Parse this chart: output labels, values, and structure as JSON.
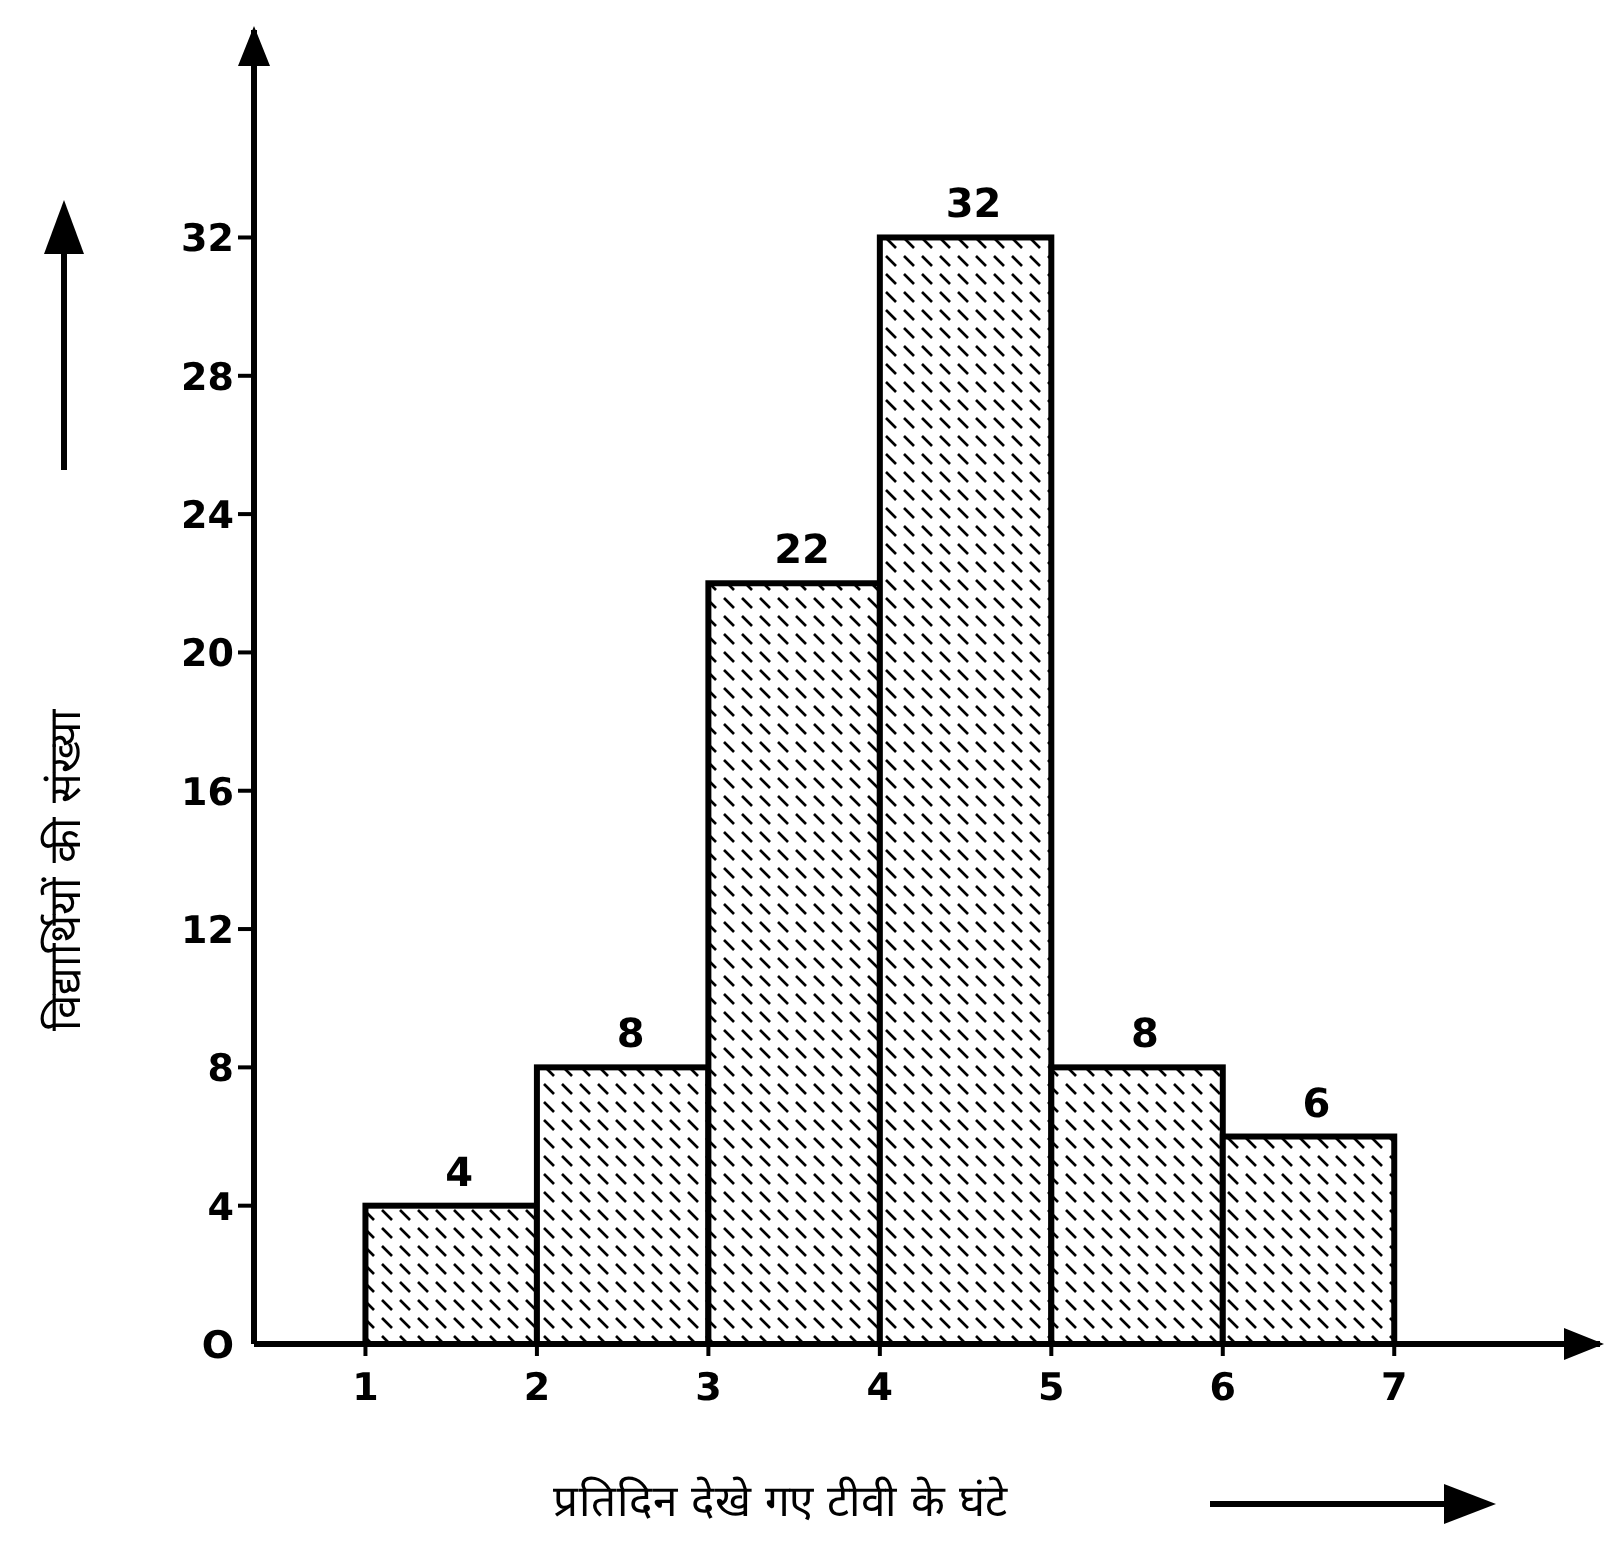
{
  "chart_data": {
    "type": "histogram",
    "xlabel": "प्रतिदिन देखे गए टीवी के घंटे",
    "ylabel": "विद्यार्थियों की संख्या",
    "bins": [
      1,
      2,
      3,
      4,
      5,
      6,
      7
    ],
    "values": [
      4,
      8,
      22,
      32,
      8,
      6
    ],
    "color": "#000000",
    "data_labels": true,
    "grid": false,
    "xlim": [
      0.35,
      8.2
    ],
    "ylim": [
      0,
      38
    ],
    "xticks": [
      1,
      2,
      3,
      4,
      5,
      6,
      7
    ],
    "yticks": [
      {
        "value": 0,
        "label": "O"
      },
      4,
      8,
      12,
      16,
      20,
      24,
      28,
      32
    ]
  }
}
